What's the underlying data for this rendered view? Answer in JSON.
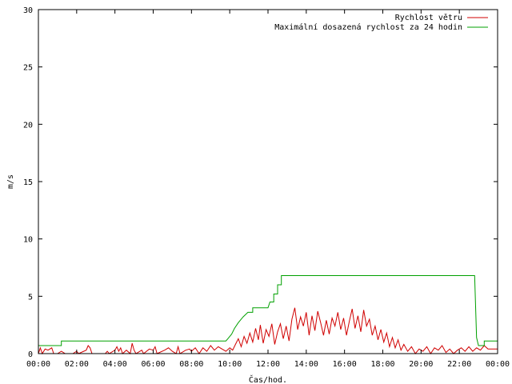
{
  "chart_data": {
    "type": "line",
    "xlabel": "Čas/hod.",
    "ylabel": "m/s",
    "xlim": [
      0,
      24
    ],
    "ylim": [
      0,
      30
    ],
    "x_ticks": [
      {
        "value": 0,
        "label": "00:00"
      },
      {
        "value": 2,
        "label": "02:00"
      },
      {
        "value": 4,
        "label": "04:00"
      },
      {
        "value": 6,
        "label": "06:00"
      },
      {
        "value": 8,
        "label": "08:00"
      },
      {
        "value": 10,
        "label": "10:00"
      },
      {
        "value": 12,
        "label": "12:00"
      },
      {
        "value": 14,
        "label": "14:00"
      },
      {
        "value": 16,
        "label": "16:00"
      },
      {
        "value": 18,
        "label": "18:00"
      },
      {
        "value": 20,
        "label": "20:00"
      },
      {
        "value": 22,
        "label": "22:00"
      },
      {
        "value": 24,
        "label": "00:00"
      }
    ],
    "y_ticks": [
      {
        "value": 0,
        "label": "0"
      },
      {
        "value": 5,
        "label": "5"
      },
      {
        "value": 10,
        "label": "10"
      },
      {
        "value": 15,
        "label": "15"
      },
      {
        "value": 20,
        "label": "20"
      },
      {
        "value": 25,
        "label": "25"
      },
      {
        "value": 30,
        "label": "30"
      }
    ],
    "grid": false,
    "legend_position": "top-right",
    "series": [
      {
        "name": "Rychlost větru",
        "color": "#d00000",
        "points": [
          [
            0,
            0
          ],
          [
            0.1,
            0.5
          ],
          [
            0.2,
            0
          ],
          [
            0.35,
            0.4
          ],
          [
            0.5,
            0.3
          ],
          [
            0.7,
            0.5
          ],
          [
            0.8,
            0
          ],
          [
            1.0,
            0
          ],
          [
            1.2,
            0.2
          ],
          [
            1.4,
            0
          ],
          [
            1.8,
            0
          ],
          [
            2.0,
            0.2
          ],
          [
            2.1,
            0
          ],
          [
            2.5,
            0.3
          ],
          [
            2.6,
            0.7
          ],
          [
            2.7,
            0.5
          ],
          [
            2.8,
            0
          ],
          [
            3.5,
            0
          ],
          [
            3.6,
            0.2
          ],
          [
            3.7,
            0
          ],
          [
            4.0,
            0.3
          ],
          [
            4.1,
            0.6
          ],
          [
            4.2,
            0.2
          ],
          [
            4.3,
            0.5
          ],
          [
            4.4,
            0
          ],
          [
            4.6,
            0.3
          ],
          [
            4.8,
            0
          ],
          [
            4.9,
            0.9
          ],
          [
            5.0,
            0.3
          ],
          [
            5.1,
            0
          ],
          [
            5.4,
            0.3
          ],
          [
            5.5,
            0
          ],
          [
            5.8,
            0.4
          ],
          [
            6.0,
            0.3
          ],
          [
            6.1,
            0.6
          ],
          [
            6.2,
            0
          ],
          [
            6.6,
            0.3
          ],
          [
            6.8,
            0.5
          ],
          [
            7.0,
            0.2
          ],
          [
            7.2,
            0
          ],
          [
            7.3,
            0.6
          ],
          [
            7.4,
            0
          ],
          [
            7.7,
            0.3
          ],
          [
            7.9,
            0.4
          ],
          [
            8.0,
            0.2
          ],
          [
            8.2,
            0.5
          ],
          [
            8.4,
            0
          ],
          [
            8.6,
            0.5
          ],
          [
            8.8,
            0.2
          ],
          [
            9.0,
            0.7
          ],
          [
            9.2,
            0.3
          ],
          [
            9.4,
            0.6
          ],
          [
            9.6,
            0.4
          ],
          [
            9.8,
            0.2
          ],
          [
            10.0,
            0.5
          ],
          [
            10.15,
            0.3
          ],
          [
            10.3,
            0.8
          ],
          [
            10.45,
            1.3
          ],
          [
            10.6,
            0.6
          ],
          [
            10.75,
            1.5
          ],
          [
            10.9,
            0.9
          ],
          [
            11.05,
            1.8
          ],
          [
            11.2,
            1.0
          ],
          [
            11.35,
            2.2
          ],
          [
            11.5,
            1.2
          ],
          [
            11.6,
            2.5
          ],
          [
            11.75,
            0.9
          ],
          [
            11.9,
            2.1
          ],
          [
            12.05,
            1.5
          ],
          [
            12.2,
            2.6
          ],
          [
            12.35,
            0.8
          ],
          [
            12.5,
            1.9
          ],
          [
            12.65,
            2.6
          ],
          [
            12.8,
            1.3
          ],
          [
            12.95,
            2.4
          ],
          [
            13.1,
            1.1
          ],
          [
            13.25,
            3.0
          ],
          [
            13.4,
            4.0
          ],
          [
            13.55,
            2.1
          ],
          [
            13.7,
            3.2
          ],
          [
            13.85,
            2.4
          ],
          [
            14.0,
            3.6
          ],
          [
            14.15,
            1.6
          ],
          [
            14.3,
            3.3
          ],
          [
            14.45,
            2.0
          ],
          [
            14.6,
            3.7
          ],
          [
            14.75,
            2.7
          ],
          [
            14.9,
            1.6
          ],
          [
            15.05,
            2.9
          ],
          [
            15.2,
            1.7
          ],
          [
            15.35,
            3.1
          ],
          [
            15.5,
            2.4
          ],
          [
            15.65,
            3.6
          ],
          [
            15.8,
            2.1
          ],
          [
            15.95,
            3.1
          ],
          [
            16.1,
            1.6
          ],
          [
            16.25,
            2.8
          ],
          [
            16.4,
            3.9
          ],
          [
            16.55,
            2.2
          ],
          [
            16.7,
            3.3
          ],
          [
            16.85,
            1.9
          ],
          [
            17.0,
            3.8
          ],
          [
            17.15,
            2.4
          ],
          [
            17.3,
            3.0
          ],
          [
            17.45,
            1.6
          ],
          [
            17.6,
            2.4
          ],
          [
            17.75,
            1.2
          ],
          [
            17.9,
            2.1
          ],
          [
            18.05,
            1.0
          ],
          [
            18.2,
            1.8
          ],
          [
            18.35,
            0.6
          ],
          [
            18.5,
            1.4
          ],
          [
            18.65,
            0.5
          ],
          [
            18.8,
            1.2
          ],
          [
            18.95,
            0.3
          ],
          [
            19.1,
            0.8
          ],
          [
            19.3,
            0.2
          ],
          [
            19.5,
            0.6
          ],
          [
            19.7,
            0
          ],
          [
            19.9,
            0.4
          ],
          [
            20.1,
            0.2
          ],
          [
            20.3,
            0.6
          ],
          [
            20.5,
            0
          ],
          [
            20.7,
            0.5
          ],
          [
            20.9,
            0.3
          ],
          [
            21.1,
            0.7
          ],
          [
            21.3,
            0.1
          ],
          [
            21.5,
            0.4
          ],
          [
            21.7,
            0
          ],
          [
            21.9,
            0.3
          ],
          [
            22.1,
            0.5
          ],
          [
            22.3,
            0.2
          ],
          [
            22.5,
            0.6
          ],
          [
            22.7,
            0.2
          ],
          [
            22.9,
            0.5
          ],
          [
            23.1,
            0.3
          ],
          [
            23.3,
            0.7
          ],
          [
            23.5,
            0.4
          ],
          [
            23.8,
            0.4
          ],
          [
            24.0,
            0.4
          ]
        ]
      },
      {
        "name": "Maximální dosazená rychlost za 24 hodin",
        "color": "#00a000",
        "points": [
          [
            0,
            0.7
          ],
          [
            1.2,
            0.7
          ],
          [
            1.2,
            1.1
          ],
          [
            9.8,
            1.1
          ],
          [
            9.9,
            1.3
          ],
          [
            10.1,
            1.7
          ],
          [
            10.25,
            2.2
          ],
          [
            10.45,
            2.7
          ],
          [
            10.7,
            3.2
          ],
          [
            10.95,
            3.6
          ],
          [
            11.2,
            3.6
          ],
          [
            11.2,
            4.0
          ],
          [
            12.0,
            4.0
          ],
          [
            12.1,
            4.5
          ],
          [
            12.3,
            4.5
          ],
          [
            12.3,
            5.2
          ],
          [
            12.5,
            5.2
          ],
          [
            12.5,
            6.0
          ],
          [
            12.7,
            6.0
          ],
          [
            12.7,
            6.8
          ],
          [
            22.8,
            6.8
          ],
          [
            22.9,
            1.4
          ],
          [
            23.0,
            0.7
          ],
          [
            23.3,
            0.7
          ],
          [
            23.3,
            1.1
          ],
          [
            24.0,
            1.1
          ]
        ]
      }
    ]
  }
}
